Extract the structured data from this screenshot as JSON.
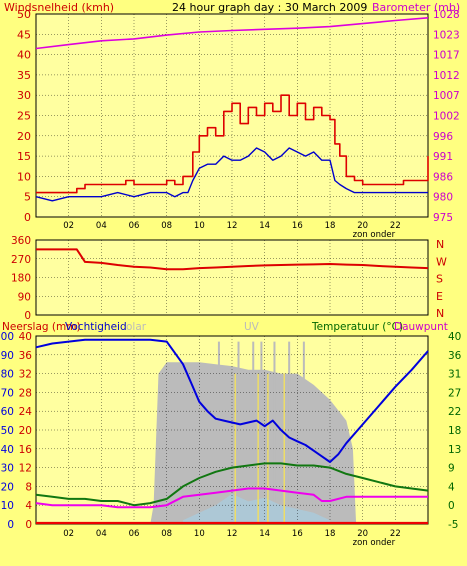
{
  "colors": {
    "background": "#ffff80",
    "plot_bg": "#ffffa0",
    "wind_axis": "#cc0000",
    "baro_axis": "#cc00cc",
    "dir_axis": "#cc0000",
    "green_axis": "#006600",
    "wind_gust": "#dd0000",
    "wind_avg": "#0000cc",
    "barometer": "#dd00dd",
    "direction": "#dd0000",
    "humidity": "#0000dd",
    "temperature": "#117711",
    "dewpoint": "#ee00ee",
    "solar": "#bbbbbb",
    "uv": "#eedd66",
    "rain": "#ee0000"
  },
  "chart_data": [
    {
      "type": "line",
      "title": "24 hour graph day : 30 March 2009",
      "ylabel_left": "Windsnelheid (kmh)",
      "ylabel_right": "Barometer (mb)",
      "x_ticks": [
        "02",
        "04",
        "06",
        "08",
        "10",
        "12",
        "14",
        "16",
        "18",
        "20",
        "22",
        ""
      ],
      "x_note": "zon onder",
      "xlim": [
        0,
        24
      ],
      "ylim_left": [
        0,
        50
      ],
      "y_ticks_left": [
        "0",
        "5",
        "10",
        "15",
        "20",
        "25",
        "30",
        "35",
        "40",
        "45",
        "50"
      ],
      "ylim_right": [
        975,
        1028
      ],
      "y_ticks_right": [
        "975",
        "980",
        "986",
        "991",
        "996",
        "1002",
        "1007",
        "1012",
        "1017",
        "1023",
        "1028"
      ],
      "grid": true,
      "series": [
        {
          "name": "wind_gust",
          "axis": "left",
          "x": [
            0,
            1,
            2,
            2.5,
            3,
            4,
            5,
            5.5,
            6,
            7,
            8,
            8.5,
            9,
            9.3,
            9.6,
            10,
            10.5,
            11,
            11.5,
            12,
            12.5,
            13,
            13.5,
            14,
            14.5,
            15,
            15.5,
            16,
            16.5,
            17,
            17.5,
            18,
            18.3,
            18.6,
            19,
            19.5,
            20,
            20.5,
            21,
            21.5,
            22,
            22.5,
            23,
            24
          ],
          "y": [
            6,
            6,
            6,
            7,
            8,
            8,
            8,
            9,
            8,
            8,
            9,
            8,
            10,
            10,
            16,
            20,
            22,
            20,
            26,
            28,
            23,
            27,
            25,
            28,
            26,
            30,
            25,
            28,
            24,
            27,
            25,
            24,
            18,
            15,
            10,
            9,
            8,
            8,
            8,
            8,
            8,
            9,
            9,
            15
          ]
        },
        {
          "name": "wind_avg",
          "axis": "left",
          "x": [
            0,
            1,
            2,
            3,
            4,
            5,
            6,
            7,
            8,
            8.5,
            9,
            9.3,
            9.6,
            10,
            10.5,
            11,
            11.5,
            12,
            12.5,
            13,
            13.5,
            14,
            14.5,
            15,
            15.5,
            16,
            16.5,
            17,
            17.5,
            18,
            18.3,
            18.6,
            19,
            19.5,
            20,
            20.5,
            21,
            21.5,
            22,
            22.5,
            23,
            24
          ],
          "y": [
            5,
            4,
            5,
            5,
            5,
            6,
            5,
            6,
            6,
            5,
            6,
            6,
            9,
            12,
            13,
            13,
            15,
            14,
            14,
            15,
            17,
            16,
            14,
            15,
            17,
            16,
            15,
            16,
            14,
            14,
            9,
            8,
            7,
            6,
            6,
            6,
            6,
            6,
            6,
            6,
            6,
            6
          ]
        },
        {
          "name": "barometer",
          "axis": "right",
          "x": [
            0,
            2,
            4,
            6,
            8,
            10,
            12,
            14,
            16,
            18,
            20,
            22,
            24
          ],
          "y": [
            1019,
            1020,
            1021,
            1021.5,
            1022.5,
            1023.3,
            1023.7,
            1024,
            1024.3,
            1024.7,
            1025.5,
            1026.3,
            1027
          ]
        }
      ]
    },
    {
      "type": "line",
      "ylabel_right": "N W S E N",
      "right_labels": [
        "N",
        "W",
        "S",
        "E",
        "N"
      ],
      "xlim": [
        0,
        24
      ],
      "ylim": [
        0,
        360
      ],
      "y_ticks": [
        "0",
        "90",
        "180",
        "270",
        "360"
      ],
      "series": [
        {
          "name": "wind_direction",
          "x": [
            0,
            1,
            2.5,
            3,
            4,
            5,
            6,
            7,
            8,
            9,
            10,
            11,
            12,
            13,
            14,
            15,
            16,
            17,
            18,
            19,
            20,
            21,
            22,
            23,
            24
          ],
          "y": [
            315,
            315,
            315,
            255,
            250,
            240,
            232,
            228,
            220,
            220,
            225,
            228,
            232,
            235,
            238,
            240,
            242,
            243,
            245,
            242,
            240,
            235,
            232,
            228,
            225
          ]
        }
      ]
    },
    {
      "type": "area",
      "ylabel_left": "Neerslag (mm)",
      "ylabel_left2": "Vochtigheid",
      "solar_label": "olar",
      "uv_label": "UV",
      "ylabel_right": "Temperatuur (°C)",
      "ylabel_right2": "Dauwpunt",
      "x_ticks": [
        "02",
        "04",
        "06",
        "08",
        "10",
        "12",
        "14",
        "16",
        "18",
        "20",
        "22",
        ""
      ],
      "x_note": "zon onder",
      "xlim": [
        0,
        24
      ],
      "ylim_left": [
        0,
        100
      ],
      "y_ticks_left": [
        "0",
        "10",
        "20",
        "30",
        "40",
        "50",
        "60",
        "70",
        "80",
        "90",
        "100"
      ],
      "y_ticks_left_inner": [
        "0",
        "4",
        "8",
        "12",
        "16",
        "20",
        "24",
        "28",
        "32",
        "36",
        "40"
      ],
      "ylim_right": [
        -5,
        40
      ],
      "y_ticks_right": [
        "-5",
        "0",
        "4",
        "9",
        "13",
        "18",
        "22",
        "27",
        "31",
        "36",
        "40"
      ],
      "grid": true,
      "series": [
        {
          "name": "humidity",
          "axis": "left",
          "x": [
            0,
            1,
            2,
            3,
            4,
            5,
            6,
            7,
            8,
            9,
            9.5,
            10,
            10.5,
            11,
            11.5,
            12,
            12.5,
            13,
            13.5,
            14,
            14.5,
            15,
            15.5,
            16,
            16.5,
            17,
            17.5,
            18,
            18.5,
            19,
            20,
            21,
            22,
            23,
            24
          ],
          "y": [
            94,
            96,
            97,
            98,
            98,
            98,
            98,
            98,
            97,
            85,
            75,
            65,
            60,
            56,
            55,
            54,
            53,
            54,
            55,
            52,
            55,
            50,
            46,
            44,
            42,
            39,
            36,
            33,
            37,
            43,
            53,
            63,
            73,
            82,
            92
          ]
        },
        {
          "name": "temperature",
          "axis": "right",
          "x": [
            0,
            1,
            2,
            3,
            4,
            5,
            6,
            7,
            8,
            9,
            10,
            11,
            12,
            13,
            14,
            15,
            16,
            17,
            18,
            19,
            20,
            21,
            22,
            23,
            24
          ],
          "y": [
            2,
            1.5,
            1,
            1,
            0.5,
            0.5,
            -0.5,
            0,
            1,
            4,
            6,
            7.5,
            8.5,
            9,
            9.5,
            9.5,
            9,
            9,
            8.5,
            7,
            6,
            5,
            4,
            3.5,
            3
          ]
        },
        {
          "name": "dewpoint",
          "axis": "right",
          "x": [
            0,
            1,
            2,
            3,
            4,
            5,
            6,
            7,
            8,
            9,
            10,
            11,
            12,
            13,
            14,
            15,
            16,
            17,
            17.5,
            18,
            19,
            20,
            21,
            22,
            23,
            24
          ],
          "y": [
            0,
            -0.5,
            -0.5,
            -0.5,
            -0.5,
            -1,
            -1,
            -1,
            -0.5,
            1.5,
            2,
            2.5,
            3,
            3.5,
            3.5,
            3,
            2.5,
            2,
            0.5,
            0.5,
            1.5,
            1.5,
            1.5,
            1.5,
            1.5,
            1.5
          ]
        },
        {
          "name": "solar",
          "axis": "left",
          "x": [
            7,
            7.2,
            7.5,
            8,
            9,
            10,
            11,
            12,
            13,
            14,
            15,
            16,
            17,
            18,
            19,
            19.4,
            19.6
          ],
          "y": [
            0,
            10,
            80,
            86,
            86,
            86,
            85,
            84,
            82,
            82,
            80,
            80,
            74,
            66,
            55,
            40,
            0
          ]
        },
        {
          "name": "uv",
          "axis": "left",
          "x": [
            9,
            10,
            11,
            12,
            13,
            14,
            15,
            16,
            17,
            18
          ],
          "y": [
            2,
            6,
            10,
            16,
            12,
            14,
            10,
            8,
            6,
            2
          ]
        },
        {
          "name": "rain",
          "axis": "left",
          "x": [
            0,
            24
          ],
          "y": [
            0,
            0
          ]
        }
      ]
    }
  ]
}
